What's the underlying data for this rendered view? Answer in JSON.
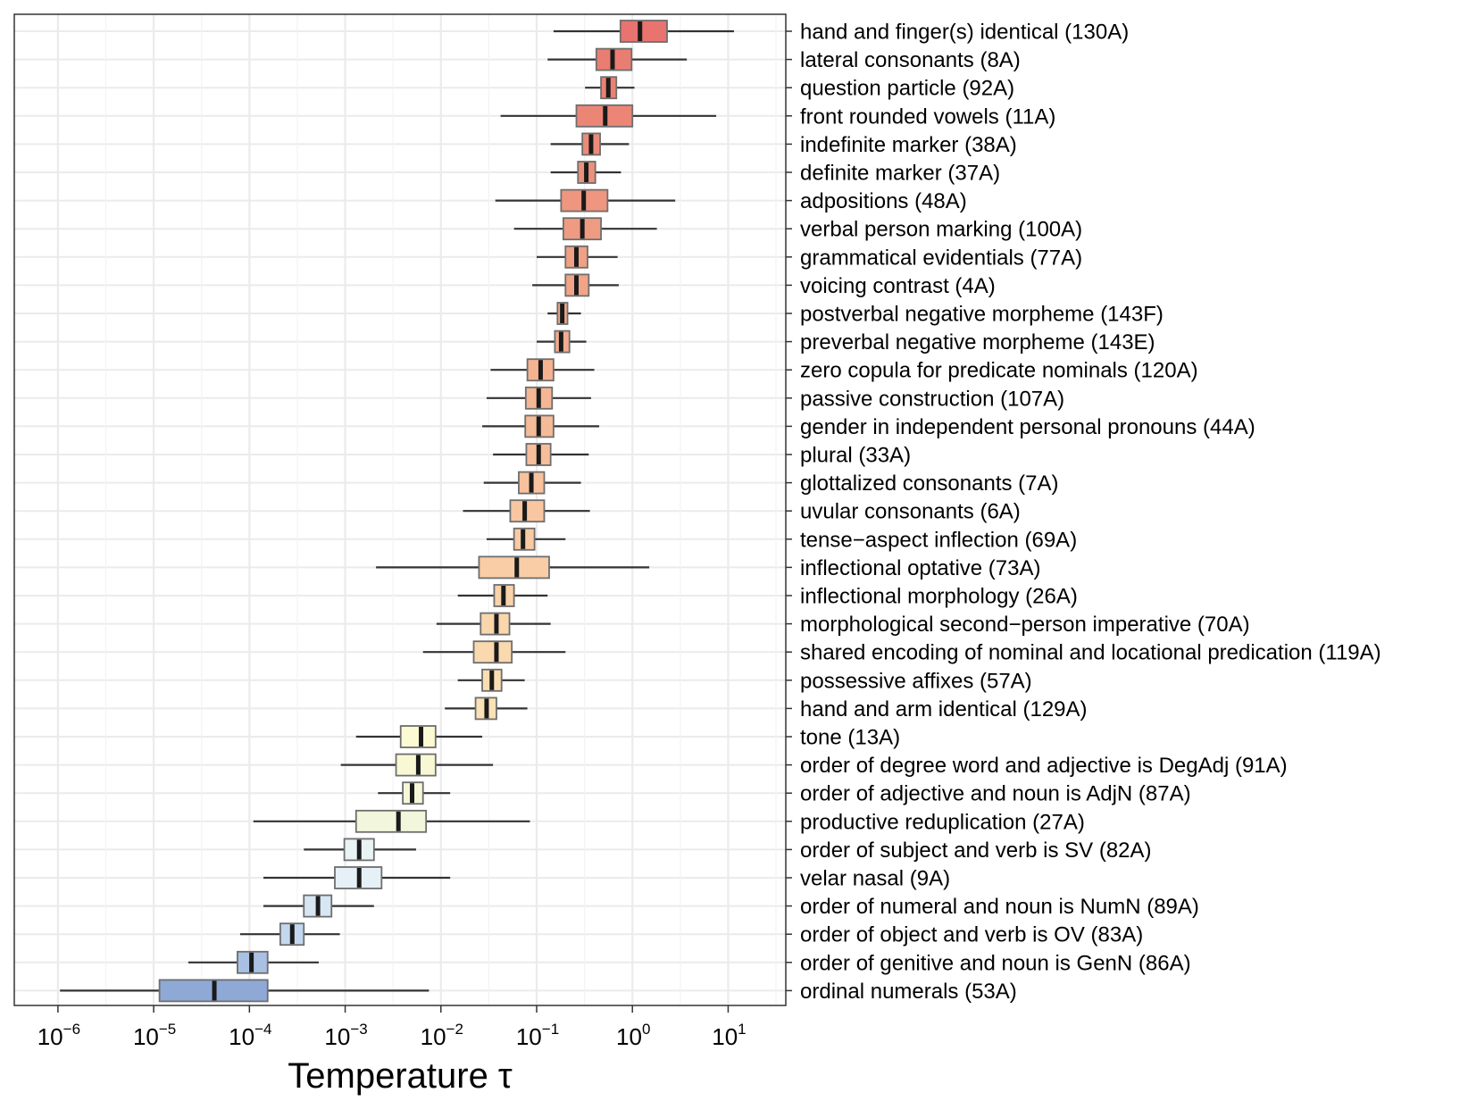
{
  "chart_data": {
    "type": "boxplot",
    "title": "",
    "xlabel": "Temperature τ",
    "ylabel": "",
    "xscale": "log10",
    "xlim": [
      3.5e-07,
      40
    ],
    "grid": true,
    "legend": "none",
    "x_ticks": [
      {
        "base": "10",
        "exp": "−6",
        "value": 1e-06
      },
      {
        "base": "10",
        "exp": "−5",
        "value": 1e-05
      },
      {
        "base": "10",
        "exp": "−4",
        "value": 0.0001
      },
      {
        "base": "10",
        "exp": "−3",
        "value": 0.001
      },
      {
        "base": "10",
        "exp": "−2",
        "value": 0.01
      },
      {
        "base": "10",
        "exp": "−1",
        "value": 0.1
      },
      {
        "base": "10",
        "exp": "0",
        "value": 1
      },
      {
        "base": "10",
        "exp": "1",
        "value": 10
      }
    ],
    "series": [
      {
        "label": "hand and finger(s) identical (130A)",
        "whisker_low": 0.15,
        "q1": 0.75,
        "median": 1.2,
        "q3": 2.3,
        "whisker_high": 11.5,
        "color": "#e8736f"
      },
      {
        "label": "lateral consonants (8A)",
        "whisker_low": 0.13,
        "q1": 0.42,
        "median": 0.62,
        "q3": 0.98,
        "whisker_high": 3.7,
        "color": "#ea7d72"
      },
      {
        "label": "question particle (92A)",
        "whisker_low": 0.32,
        "q1": 0.47,
        "median": 0.56,
        "q3": 0.68,
        "whisker_high": 1.05,
        "color": "#ea8274"
      },
      {
        "label": "front rounded vowels (11A)",
        "whisker_low": 0.042,
        "q1": 0.26,
        "median": 0.52,
        "q3": 1.0,
        "whisker_high": 7.5,
        "color": "#eb8676"
      },
      {
        "label": "indefinite marker (38A)",
        "whisker_low": 0.14,
        "q1": 0.3,
        "median": 0.37,
        "q3": 0.46,
        "whisker_high": 0.92,
        "color": "#ec8b79"
      },
      {
        "label": "definite marker (37A)",
        "whisker_low": 0.14,
        "q1": 0.27,
        "median": 0.33,
        "q3": 0.41,
        "whisker_high": 0.76,
        "color": "#ed917c"
      },
      {
        "label": "adpositions (48A)",
        "whisker_low": 0.037,
        "q1": 0.18,
        "median": 0.31,
        "q3": 0.55,
        "whisker_high": 2.8,
        "color": "#ee967f"
      },
      {
        "label": "verbal person marking (100A)",
        "whisker_low": 0.058,
        "q1": 0.19,
        "median": 0.3,
        "q3": 0.47,
        "whisker_high": 1.8,
        "color": "#ef9b82"
      },
      {
        "label": "grammatical evidentials (77A)",
        "whisker_low": 0.1,
        "q1": 0.2,
        "median": 0.26,
        "q3": 0.34,
        "whisker_high": 0.7,
        "color": "#f0a085"
      },
      {
        "label": "voicing contrast (4A)",
        "whisker_low": 0.09,
        "q1": 0.2,
        "median": 0.26,
        "q3": 0.35,
        "whisker_high": 0.72,
        "color": "#f1a488"
      },
      {
        "label": "postverbal negative morpheme (143F)",
        "whisker_low": 0.13,
        "q1": 0.165,
        "median": 0.185,
        "q3": 0.21,
        "whisker_high": 0.29,
        "color": "#f2a98b"
      },
      {
        "label": "preverbal negative morpheme (143E)",
        "whisker_low": 0.1,
        "q1": 0.155,
        "median": 0.18,
        "q3": 0.22,
        "whisker_high": 0.33,
        "color": "#f3ad8e"
      },
      {
        "label": "zero copula for predicate nominals (120A)",
        "whisker_low": 0.033,
        "q1": 0.08,
        "median": 0.11,
        "q3": 0.15,
        "whisker_high": 0.4,
        "color": "#f4b291"
      },
      {
        "label": "passive construction (107A)",
        "whisker_low": 0.03,
        "q1": 0.077,
        "median": 0.105,
        "q3": 0.145,
        "whisker_high": 0.37,
        "color": "#f5b694"
      },
      {
        "label": "gender in independent personal pronouns (44A)",
        "whisker_low": 0.027,
        "q1": 0.076,
        "median": 0.105,
        "q3": 0.15,
        "whisker_high": 0.45,
        "color": "#f5ba97"
      },
      {
        "label": "plural (33A)",
        "whisker_low": 0.035,
        "q1": 0.078,
        "median": 0.105,
        "q3": 0.14,
        "whisker_high": 0.35,
        "color": "#f6be9a"
      },
      {
        "label": "glottalized consonants (7A)",
        "whisker_low": 0.028,
        "q1": 0.065,
        "median": 0.088,
        "q3": 0.12,
        "whisker_high": 0.29,
        "color": "#f7c29d"
      },
      {
        "label": "uvular consonants (6A)",
        "whisker_low": 0.017,
        "q1": 0.053,
        "median": 0.075,
        "q3": 0.12,
        "whisker_high": 0.36,
        "color": "#f8c6a0"
      },
      {
        "label": "tense−aspect inflection (69A)",
        "whisker_low": 0.03,
        "q1": 0.058,
        "median": 0.072,
        "q3": 0.095,
        "whisker_high": 0.2,
        "color": "#f8caa3"
      },
      {
        "label": "inflectional optative (73A)",
        "whisker_low": 0.0021,
        "q1": 0.025,
        "median": 0.062,
        "q3": 0.135,
        "whisker_high": 1.5,
        "color": "#f9cea6"
      },
      {
        "label": "inflectional morphology (26A)",
        "whisker_low": 0.015,
        "q1": 0.036,
        "median": 0.045,
        "q3": 0.058,
        "whisker_high": 0.13,
        "color": "#f9d2a9"
      },
      {
        "label": "morphological second−person imperative (70A)",
        "whisker_low": 0.009,
        "q1": 0.026,
        "median": 0.038,
        "q3": 0.052,
        "whisker_high": 0.14,
        "color": "#fad6ac"
      },
      {
        "label": "shared encoding of nominal and locational predication (119A)",
        "whisker_low": 0.0065,
        "q1": 0.022,
        "median": 0.038,
        "q3": 0.055,
        "whisker_high": 0.2,
        "color": "#fad9af"
      },
      {
        "label": "possessive affixes (57A)",
        "whisker_low": 0.015,
        "q1": 0.027,
        "median": 0.034,
        "q3": 0.043,
        "whisker_high": 0.075,
        "color": "#fbddb2"
      },
      {
        "label": "hand and arm identical (129A)",
        "whisker_low": 0.011,
        "q1": 0.023,
        "median": 0.03,
        "q3": 0.038,
        "whisker_high": 0.08,
        "color": "#fbe1b6"
      },
      {
        "label": "tone (13A)",
        "whisker_low": 0.0013,
        "q1": 0.0038,
        "median": 0.0062,
        "q3": 0.0088,
        "whisker_high": 0.027,
        "color": "#fbfad3"
      },
      {
        "label": "order of degree word and adjective is DegAdj (91A)",
        "whisker_low": 0.0009,
        "q1": 0.0034,
        "median": 0.0058,
        "q3": 0.0088,
        "whisker_high": 0.035,
        "color": "#f8f8d4"
      },
      {
        "label": "order of adjective and noun is AdjN (87A)",
        "whisker_low": 0.0022,
        "q1": 0.004,
        "median": 0.005,
        "q3": 0.0065,
        "whisker_high": 0.0125,
        "color": "#f5f7d8"
      },
      {
        "label": "productive reduplication (27A)",
        "whisker_low": 0.00011,
        "q1": 0.0013,
        "median": 0.0036,
        "q3": 0.007,
        "whisker_high": 0.085,
        "color": "#f1f6dc"
      },
      {
        "label": "order of subject and verb is SV (82A)",
        "whisker_low": 0.00037,
        "q1": 0.00098,
        "median": 0.0014,
        "q3": 0.002,
        "whisker_high": 0.0055,
        "color": "#e9f3f3"
      },
      {
        "label": "velar nasal (9A)",
        "whisker_low": 0.00014,
        "q1": 0.00078,
        "median": 0.0014,
        "q3": 0.0024,
        "whisker_high": 0.0125,
        "color": "#e5f1f7"
      },
      {
        "label": "order of numeral and noun is NumN (89A)",
        "whisker_low": 0.00014,
        "q1": 0.00037,
        "median": 0.00052,
        "q3": 0.00072,
        "whisker_high": 0.002,
        "color": "#d6e6f3"
      },
      {
        "label": "order of object and verb is OV (83A)",
        "whisker_low": 8e-05,
        "q1": 0.00021,
        "median": 0.00028,
        "q3": 0.00037,
        "whisker_high": 0.00088,
        "color": "#c3d8ee"
      },
      {
        "label": "order of genitive and noun is GenN (86A)",
        "whisker_low": 2.3e-05,
        "q1": 7.5e-05,
        "median": 0.000105,
        "q3": 0.000155,
        "whisker_high": 0.00053,
        "color": "#a8c0e2"
      },
      {
        "label": "ordinal numerals (53A)",
        "whisker_low": 1.05e-06,
        "q1": 1.15e-05,
        "median": 4.3e-05,
        "q3": 0.000155,
        "whisker_high": 0.0075,
        "color": "#8ea9d6"
      }
    ]
  }
}
